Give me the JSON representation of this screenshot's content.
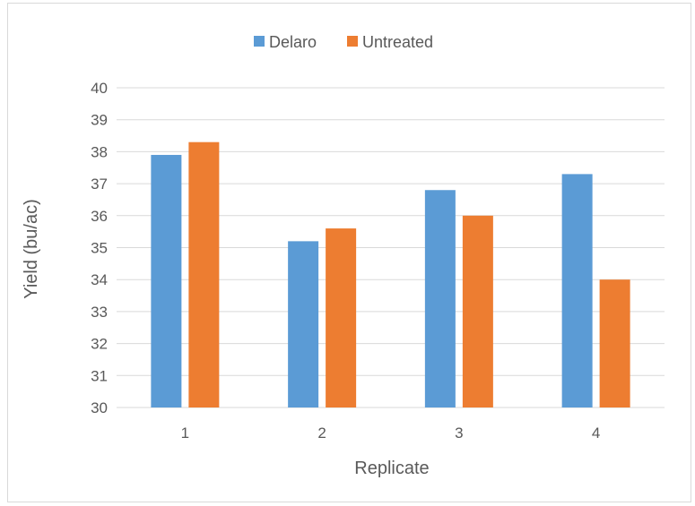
{
  "chart_data": {
    "type": "bar",
    "categories": [
      "1",
      "2",
      "3",
      "4"
    ],
    "series": [
      {
        "name": "Delaro",
        "values": [
          37.9,
          35.2,
          36.8,
          37.3
        ],
        "color": "#5b9bd5"
      },
      {
        "name": "Untreated",
        "values": [
          38.3,
          35.6,
          36.0,
          34.0
        ],
        "color": "#ed7d31"
      }
    ],
    "xlabel": "Replicate",
    "ylabel": "Yield (bu/ac)",
    "ylim": [
      30,
      40
    ],
    "yticks": [
      30,
      31,
      32,
      33,
      34,
      35,
      36,
      37,
      38,
      39,
      40
    ],
    "grid": true,
    "legend_position": "top",
    "gridline_color": "#d9d9d9"
  }
}
